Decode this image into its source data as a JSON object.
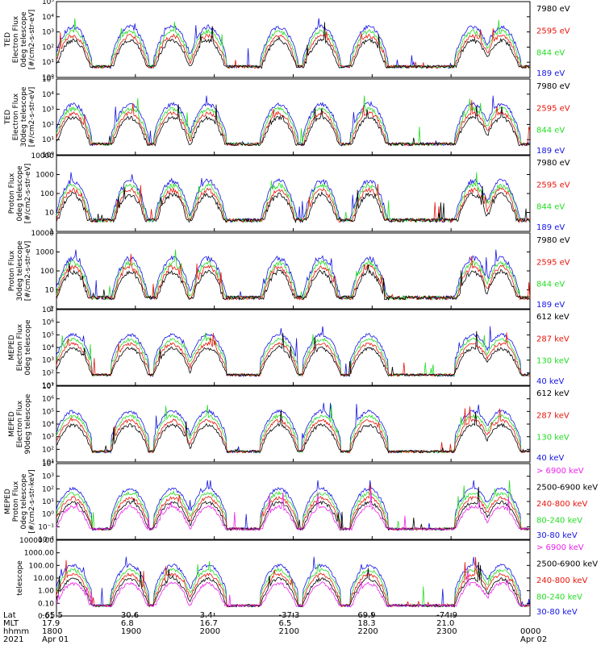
{
  "colors": {
    "black": "#000000",
    "red": "#e8140a",
    "green": "#22dd22",
    "blue": "#1414e6",
    "magenta": "#ee22ee"
  },
  "chart_data": [
    {
      "type": "line",
      "scale": "log",
      "ylim": [
        1,
        100000
      ],
      "ylabel": [
        "TED",
        "Electron Flux",
        "0deg telescope",
        "[#/cm2-s-str-eV]"
      ],
      "ytick_labels": [
        "10⁰",
        "10¹",
        "10²",
        "10³",
        "10⁴",
        "10⁵"
      ],
      "series": [
        {
          "name": "7980 eV",
          "color": "black"
        },
        {
          "name": "2595 eV",
          "color": "red"
        },
        {
          "name": "844 eV",
          "color": "green"
        },
        {
          "name": "189 eV",
          "color": "blue"
        }
      ]
    },
    {
      "type": "line",
      "scale": "log",
      "ylim": [
        1,
        100000
      ],
      "ylabel": [
        "TED",
        "Electron Flux",
        "30deg telescope",
        "[#/cm2-s-str-eV]"
      ],
      "ytick_labels": [
        "10⁰",
        "10¹",
        "10²",
        "10³",
        "10⁴",
        "10⁵"
      ],
      "series": [
        {
          "name": "7980 eV",
          "color": "black"
        },
        {
          "name": "2595 eV",
          "color": "red"
        },
        {
          "name": "844 eV",
          "color": "green"
        },
        {
          "name": "189 eV",
          "color": "blue"
        }
      ]
    },
    {
      "type": "line",
      "scale": "log",
      "ylim": [
        1,
        10000
      ],
      "ylabel": [
        "Proton Flux",
        "0deg telescope",
        "[#/cm2-s-str-eV]"
      ],
      "ytick_labels": [
        "1",
        "10",
        "100",
        "1000",
        "10000"
      ],
      "series": [
        {
          "name": "7980 eV",
          "color": "black"
        },
        {
          "name": "2595 eV",
          "color": "red"
        },
        {
          "name": "844 eV",
          "color": "green"
        },
        {
          "name": "189 eV",
          "color": "blue"
        }
      ]
    },
    {
      "type": "line",
      "scale": "log",
      "ylim": [
        1,
        10000
      ],
      "ylabel": [
        "Proton Flux",
        "30deg telescope",
        "[#/cm2-s-str-eV]"
      ],
      "ytick_labels": [
        "1",
        "10",
        "100",
        "1000",
        "10000"
      ],
      "series": [
        {
          "name": "7980 eV",
          "color": "black"
        },
        {
          "name": "2595 eV",
          "color": "red"
        },
        {
          "name": "844 eV",
          "color": "green"
        },
        {
          "name": "189 eV",
          "color": "blue"
        }
      ]
    },
    {
      "type": "line",
      "scale": "log",
      "ylim": [
        10,
        10000000
      ],
      "ylabel": [
        "MEPED",
        "Electron Flux",
        "0deg telescope",
        ""
      ],
      "ytick_labels": [
        "10¹",
        "10²",
        "10³",
        "10⁴",
        "10⁵",
        "10⁶",
        "10⁷"
      ],
      "series": [
        {
          "name": "612 keV",
          "color": "black"
        },
        {
          "name": "287 keV",
          "color": "red"
        },
        {
          "name": "130 keV",
          "color": "green"
        },
        {
          "name": "40 keV",
          "color": "blue"
        }
      ]
    },
    {
      "type": "line",
      "scale": "log",
      "ylim": [
        10,
        10000000
      ],
      "ylabel": [
        "MEPED",
        "Electron Flux",
        "90deg telescope",
        ""
      ],
      "ytick_labels": [
        "10¹",
        "10²",
        "10³",
        "10⁴",
        "10⁵",
        "10⁶",
        "10⁷"
      ],
      "series": [
        {
          "name": "612 keV",
          "color": "black"
        },
        {
          "name": "287 keV",
          "color": "red"
        },
        {
          "name": "130 keV",
          "color": "green"
        },
        {
          "name": "40 keV",
          "color": "blue"
        }
      ]
    },
    {
      "type": "line",
      "scale": "log",
      "ylim": [
        0.01,
        10000
      ],
      "ylabel": [
        "MEPED",
        "Proton Flux",
        "0deg telescope",
        "[#/cm2-s-str-keV]"
      ],
      "ytick_labels": [
        "10⁻²",
        "10⁻¹",
        "10⁰",
        "10¹",
        "10²",
        "10³",
        "10⁴"
      ],
      "series": [
        {
          "name": "> 6900 keV",
          "color": "magenta"
        },
        {
          "name": "2500-6900 keV",
          "color": "black"
        },
        {
          "name": "240-800 keV",
          "color": "red"
        },
        {
          "name": "80-240 keV",
          "color": "green"
        },
        {
          "name": "30-80 keV",
          "color": "blue"
        }
      ]
    },
    {
      "type": "line",
      "scale": "log",
      "ylim": [
        0.01,
        10000
      ],
      "ylabel": [
        "",
        "",
        "",
        "telescope"
      ],
      "ytick_labels": [
        "0.01",
        "0.10",
        "1.00",
        "10.00",
        "100.00",
        "1000.00",
        "10000.00"
      ],
      "series": [
        {
          "name": "> 6900 keV",
          "color": "magenta"
        },
        {
          "name": "2500-6900 keV",
          "color": "black"
        },
        {
          "name": "240-800 keV",
          "color": "red"
        },
        {
          "name": "80-240 keV",
          "color": "green"
        },
        {
          "name": "30-80 keV",
          "color": "blue"
        }
      ]
    }
  ],
  "xaxis": {
    "row_labels": [
      "Lat",
      "MLT",
      "hhmm",
      "2021"
    ],
    "ticks": [
      {
        "lat": "-65.5",
        "mlt": "17.9",
        "hhmm": "1800",
        "date": "Apr 01"
      },
      {
        "lat": "30.6",
        "mlt": "6.8",
        "hhmm": "1900",
        "date": ""
      },
      {
        "lat": "3.4",
        "mlt": "16.7",
        "hhmm": "2000",
        "date": ""
      },
      {
        "lat": "-37.3",
        "mlt": "6.5",
        "hhmm": "2100",
        "date": ""
      },
      {
        "lat": "69.9",
        "mlt": "18.3",
        "hhmm": "2200",
        "date": ""
      },
      {
        "lat": "-74.9",
        "mlt": "21.0",
        "hhmm": "2300",
        "date": ""
      },
      {
        "lat": "",
        "mlt": "",
        "hhmm": "0000",
        "date": "Apr 02"
      }
    ]
  }
}
